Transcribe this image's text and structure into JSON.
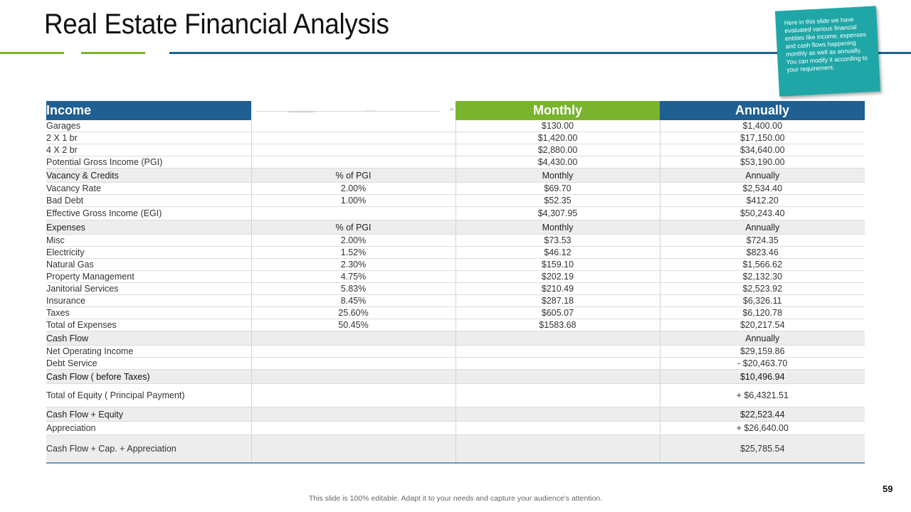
{
  "title": "Real Estate Financial Analysis",
  "note": "Here in this slide we have evaluated various financial entities like income, expenses and cash flows happening monthly as well as annually. You can modify it according to your requirement.",
  "colors": {
    "blue": "#1f5f91",
    "green": "#7ab32e",
    "teal": "#1ea7a6"
  },
  "table": {
    "headers": {
      "income": "Income",
      "monthly": "Monthly",
      "annually": "Annually"
    },
    "rows": [
      {
        "c1": "Garages",
        "c2": "",
        "c3": "$130.00",
        "c4": "$1,400.00"
      },
      {
        "c1": "2 X 1 br",
        "c2": "",
        "c3": "$1,420.00",
        "c4": "$17,150.00"
      },
      {
        "c1": "4 X 2 br",
        "c2": "",
        "c3": "$2,880.00",
        "c4": "$34,640.00"
      },
      {
        "c1": "Potential Gross Income (PGI)",
        "c2": "",
        "c3": "$4,430.00",
        "c4": "$53,190.00"
      },
      {
        "c1": "Vacancy & Credits",
        "c2": "% of PGI",
        "c3": "Monthly",
        "c4": "Annually"
      },
      {
        "c1": "Vacancy Rate",
        "c2": "2.00%",
        "c3": "$69.70",
        "c4": "$2,534.40"
      },
      {
        "c1": "Bad Debt",
        "c2": "1.00%",
        "c3": "$52.35",
        "c4": "$412.20"
      },
      {
        "c1": "Effective Gross Income (EGI)",
        "c2": "",
        "c3": "$4,307.95",
        "c4": "$50,243.40"
      },
      {
        "c1": "Expenses",
        "c2": "% of PGI",
        "c3": "Monthly",
        "c4": "Annually"
      },
      {
        "c1": "Misc",
        "c2": "2.00%",
        "c3": "$73.53",
        "c4": "$724.35"
      },
      {
        "c1": "Electricity",
        "c2": "1.52%",
        "c3": "$46.12",
        "c4": "$823.46"
      },
      {
        "c1": "Natural Gas",
        "c2": "2.30%",
        "c3": "$159.10",
        "c4": "$1,566.62"
      },
      {
        "c1": "Property Management",
        "c2": "4.75%",
        "c3": "$202.19",
        "c4": "$2,132.30"
      },
      {
        "c1": "Janitorial Services",
        "c2": "5.83%",
        "c3": "$210.49",
        "c4": "$2,523.92"
      },
      {
        "c1": "Insurance",
        "c2": "8.45%",
        "c3": "$287.18",
        "c4": "$6,326.11"
      },
      {
        "c1": "Taxes",
        "c2": "25.60%",
        "c3": "$605.07",
        "c4": "$6,120.78"
      },
      {
        "c1": "Total of Expenses",
        "c2": "50.45%",
        "c3": "$1583.68",
        "c4": "$20,217.54"
      },
      {
        "c1": "Cash Flow",
        "c2": "",
        "c3": "",
        "c4": "Annually"
      },
      {
        "c1": "Net Operating Income",
        "c2": "",
        "c3": "",
        "c4": "$29,159.86"
      },
      {
        "c1": "Debt Service",
        "c2": "",
        "c3": "",
        "c4": "- $20,463.70"
      },
      {
        "c1": "Cash Flow ( before Taxes)",
        "c2": "",
        "c3": "",
        "c4": "$10,496.94"
      },
      {
        "c1": "Total of Equity ( Principal Payment)",
        "c2": "",
        "c3": "",
        "c4": "+ $6,4321.51"
      },
      {
        "c1": "Cash Flow + Equity",
        "c2": "",
        "c3": "",
        "c4": "$22,523.44"
      },
      {
        "c1": "Appreciation",
        "c2": "",
        "c3": "",
        "c4": "+ $26,640.00"
      },
      {
        "c1": "Cash Flow + Cap. + Appreciation",
        "c2": "",
        "c3": "",
        "c4": "$25,785.54"
      }
    ]
  },
  "footer": "This slide is 100% editable. Adapt it to your needs and capture your audience's attention.",
  "page_number": "59"
}
